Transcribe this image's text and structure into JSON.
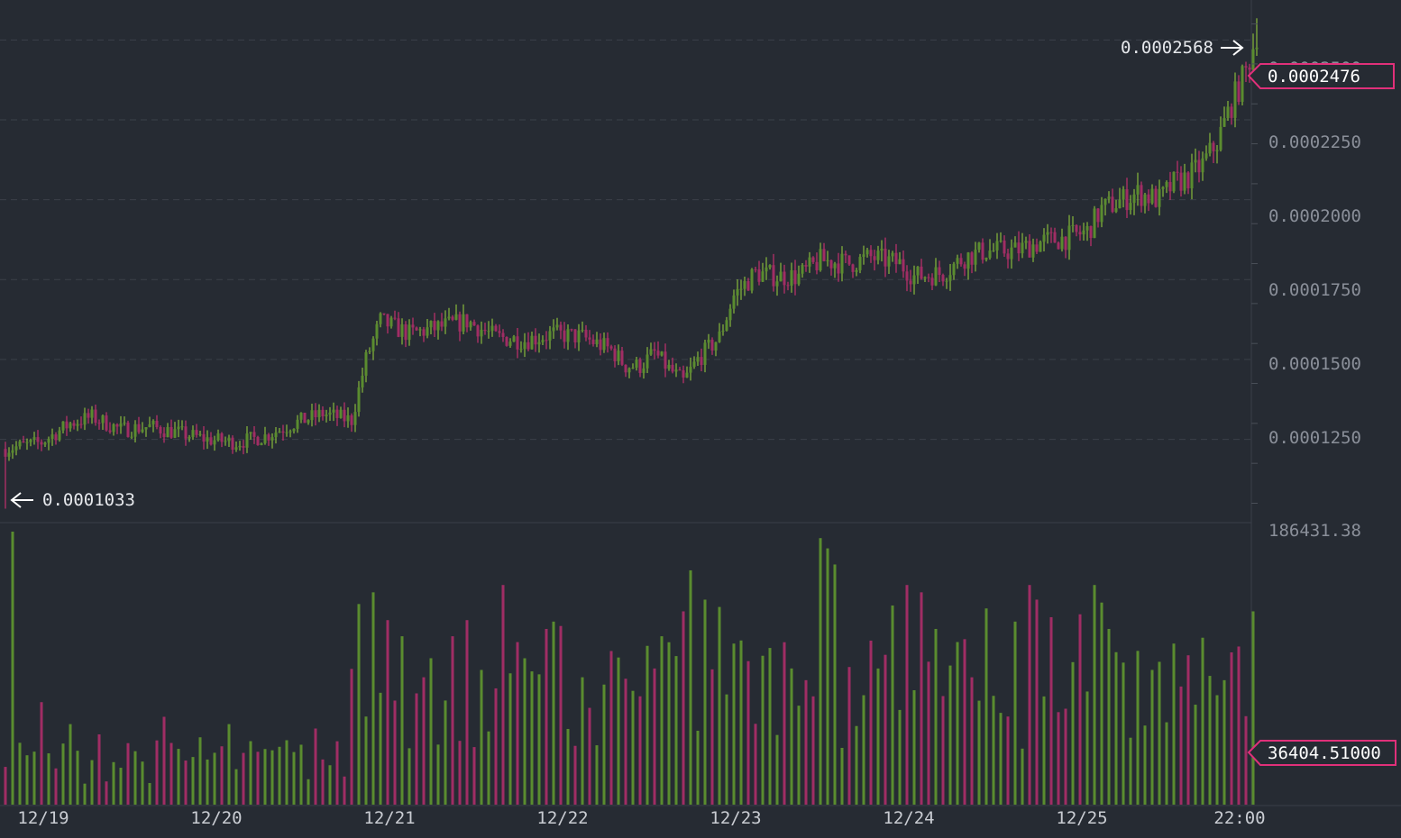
{
  "colors": {
    "background": "#262b33",
    "grid": "#3b4049",
    "up": "#5a8c2f",
    "down": "#a02d64",
    "wick_up": "#9ad43c",
    "wick_down": "#e0307a",
    "tag": "#e0307a",
    "axis_text": "#8a8f99",
    "time_text": "#c9ccd2"
  },
  "price_axis": {
    "ticks": [
      "0.0002500",
      "0.0002250",
      "0.0002000",
      "0.0001750",
      "0.0001500",
      "0.0001250"
    ],
    "last_price_tag": "0.0002476",
    "high_annotation": "0.0002568",
    "low_annotation": "0.0001033"
  },
  "volume_axis": {
    "max_label": "186431.38",
    "last_volume_tag": "36404.51000"
  },
  "time_axis": {
    "labels": [
      "12/19",
      "12/20",
      "12/21",
      "12/22",
      "12/23",
      "12/24",
      "12/25",
      "22:00"
    ]
  },
  "chart_data": {
    "type": "candlestick",
    "price_range": [
      9.95e-05,
      0.0002625
    ],
    "volume_max": 186431.38,
    "price_ticks": [
      0.000125,
      0.00015,
      0.000175,
      0.0002,
      0.000225,
      0.00025
    ],
    "time_ticks": [
      "12/19",
      "12/20",
      "12/21",
      "12/22",
      "12/23",
      "12/24",
      "12/25",
      "22:00"
    ],
    "high": 0.0002568,
    "low": 0.0001033,
    "last_close": 0.0002476,
    "last_volume": 36404.51,
    "close_anchors": [
      [
        0,
        0.000122
      ],
      [
        10,
        0.000124
      ],
      [
        18,
        0.00013
      ],
      [
        24,
        0.000132
      ],
      [
        32,
        0.000128
      ],
      [
        40,
        0.000129
      ],
      [
        48,
        0.000127
      ],
      [
        56,
        0.000125
      ],
      [
        64,
        0.000124
      ],
      [
        72,
        0.000126
      ],
      [
        80,
        0.00013
      ],
      [
        88,
        0.000133
      ],
      [
        96,
        0.000131
      ],
      [
        100,
        0.00015
      ],
      [
        104,
        0.000162
      ],
      [
        112,
        0.000158
      ],
      [
        120,
        0.00016
      ],
      [
        128,
        0.000162
      ],
      [
        136,
        0.000157
      ],
      [
        144,
        0.000156
      ],
      [
        152,
        0.000158
      ],
      [
        160,
        0.000157
      ],
      [
        168,
        0.000153
      ],
      [
        172,
        0.000148
      ],
      [
        176,
        0.000148
      ],
      [
        180,
        0.000152
      ],
      [
        184,
        0.000147
      ],
      [
        188,
        0.000143
      ],
      [
        192,
        0.00015
      ],
      [
        198,
        0.000157
      ],
      [
        202,
        0.00017
      ],
      [
        208,
        0.000177
      ],
      [
        214,
        0.000176
      ],
      [
        220,
        0.000176
      ],
      [
        226,
        0.000181
      ],
      [
        234,
        0.00018
      ],
      [
        240,
        0.000182
      ],
      [
        248,
        0.00018
      ],
      [
        252,
        0.000176
      ],
      [
        260,
        0.000177
      ],
      [
        266,
        0.000182
      ],
      [
        272,
        0.000184
      ],
      [
        280,
        0.000184
      ],
      [
        288,
        0.000187
      ],
      [
        294,
        0.000188
      ],
      [
        300,
        0.00019
      ],
      [
        304,
        0.000197
      ],
      [
        310,
        0.0002
      ],
      [
        314,
        0.000202
      ],
      [
        320,
        0.0002
      ],
      [
        324,
        0.000205
      ],
      [
        328,
        0.000207
      ],
      [
        332,
        0.000211
      ],
      [
        336,
        0.000218
      ],
      [
        340,
        0.00023
      ],
      [
        344,
        0.00024
      ],
      [
        346,
        0.000248
      ]
    ],
    "volume_spikes": [
      [
        2,
        186431.38
      ],
      [
        10,
        70000
      ],
      [
        18,
        55000
      ],
      [
        26,
        48000
      ],
      [
        34,
        42000
      ],
      [
        44,
        60000
      ],
      [
        54,
        46000
      ],
      [
        62,
        55000
      ],
      [
        72,
        38000
      ],
      [
        78,
        44000
      ],
      [
        86,
        52000
      ],
      [
        98,
        137000
      ],
      [
        102,
        145000
      ],
      [
        106,
        126000
      ],
      [
        110,
        115000
      ],
      [
        114,
        76000
      ],
      [
        118,
        100000
      ],
      [
        124,
        115000
      ],
      [
        128,
        126000
      ],
      [
        132,
        92000
      ],
      [
        138,
        150000
      ],
      [
        142,
        111000
      ],
      [
        146,
        91000
      ],
      [
        148,
        89000
      ],
      [
        150,
        120000
      ],
      [
        152,
        125000
      ],
      [
        154,
        122000
      ],
      [
        160,
        87000
      ],
      [
        166,
        82000
      ],
      [
        172,
        86000
      ],
      [
        176,
        74000
      ],
      [
        180,
        93000
      ],
      [
        182,
        115000
      ],
      [
        188,
        132000
      ],
      [
        190,
        160000
      ],
      [
        194,
        140000
      ],
      [
        198,
        135000
      ],
      [
        202,
        110000
      ],
      [
        206,
        98000
      ],
      [
        212,
        107000
      ],
      [
        218,
        93000
      ],
      [
        222,
        85000
      ],
      [
        226,
        182000
      ],
      [
        228,
        175000
      ],
      [
        230,
        164000
      ],
      [
        234,
        94000
      ],
      [
        240,
        112000
      ],
      [
        246,
        136000
      ],
      [
        250,
        150000
      ],
      [
        254,
        145000
      ],
      [
        258,
        120000
      ],
      [
        262,
        95000
      ],
      [
        266,
        113000
      ],
      [
        272,
        134000
      ],
      [
        280,
        125000
      ],
      [
        284,
        150000
      ],
      [
        286,
        140000
      ],
      [
        290,
        128000
      ],
      [
        298,
        130000
      ],
      [
        302,
        150000
      ],
      [
        304,
        138000
      ],
      [
        306,
        120000
      ],
      [
        310,
        97000
      ],
      [
        314,
        105000
      ],
      [
        318,
        92000
      ],
      [
        324,
        110000
      ],
      [
        328,
        102000
      ],
      [
        332,
        114000
      ],
      [
        338,
        85000
      ],
      [
        340,
        104000
      ],
      [
        342,
        108000
      ],
      [
        346,
        132000
      ],
      [
        347,
        36404.51
      ]
    ],
    "candle_count": 348
  }
}
